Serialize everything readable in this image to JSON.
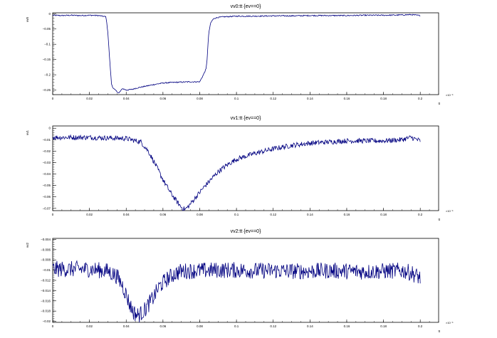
{
  "colors": {
    "trace": "#000080",
    "frame": "#000000",
    "background": "#ffffff"
  },
  "chart_data": [
    {
      "type": "line",
      "title": "vv0:tt {ev==0}",
      "xlabel": "tt",
      "ylabel": "vv0",
      "x_exponent_label": "×10⁻⁶",
      "xlim": [
        0,
        0.21
      ],
      "ylim": [
        -0.265,
        0.003
      ],
      "x_ticks": [
        0,
        0.02,
        0.04,
        0.06,
        0.08,
        0.1,
        0.12,
        0.14,
        0.16,
        0.18,
        0.2
      ],
      "y_ticks": [
        0,
        -0.05,
        -0.1,
        -0.15,
        -0.2,
        -0.25
      ],
      "series": [
        {
          "x": [
            0,
            0.005,
            0.01,
            0.015,
            0.02,
            0.025,
            0.029,
            0.03,
            0.031,
            0.032,
            0.033,
            0.034,
            0.036,
            0.038,
            0.04,
            0.043,
            0.046,
            0.05,
            0.055,
            0.06,
            0.065,
            0.07,
            0.075,
            0.08,
            0.082,
            0.0835,
            0.084,
            0.0845,
            0.085,
            0.086,
            0.087,
            0.088,
            0.09,
            0.093,
            0.097,
            0.1,
            0.11,
            0.12,
            0.13,
            0.14,
            0.15,
            0.16,
            0.17,
            0.18,
            0.19,
            0.195,
            0.2
          ],
          "y": [
            -0.005,
            -0.006,
            -0.005,
            -0.006,
            -0.005,
            -0.006,
            -0.01,
            -0.06,
            -0.15,
            -0.23,
            -0.245,
            -0.25,
            -0.26,
            -0.245,
            -0.25,
            -0.248,
            -0.243,
            -0.238,
            -0.232,
            -0.227,
            -0.225,
            -0.224,
            -0.223,
            -0.223,
            -0.2,
            -0.18,
            -0.15,
            -0.1,
            -0.06,
            -0.03,
            -0.02,
            -0.015,
            -0.012,
            -0.01,
            -0.009,
            -0.008,
            -0.008,
            -0.007,
            -0.007,
            -0.006,
            -0.006,
            -0.006,
            -0.005,
            -0.005,
            -0.004,
            -0.003,
            -0.006
          ],
          "noise": 0.0018
        }
      ]
    },
    {
      "type": "line",
      "title": "vv1:tt {ev==0}",
      "xlabel": "tt",
      "ylabel": "vv1",
      "x_exponent_label": "×10⁻⁶",
      "xlim": [
        0,
        0.21
      ],
      "ylim": [
        -0.072,
        0.002
      ],
      "x_ticks": [
        0,
        0.02,
        0.04,
        0.06,
        0.08,
        0.1,
        0.12,
        0.14,
        0.16,
        0.18,
        0.2
      ],
      "y_ticks": [
        0,
        -0.01,
        -0.02,
        -0.03,
        -0.04,
        -0.05,
        -0.06,
        -0.07
      ],
      "series": [
        {
          "x": [
            0,
            0.02,
            0.04,
            0.048,
            0.052,
            0.056,
            0.06,
            0.064,
            0.068,
            0.07,
            0.072,
            0.074,
            0.076,
            0.078,
            0.082,
            0.086,
            0.09,
            0.095,
            0.1,
            0.11,
            0.12,
            0.13,
            0.14,
            0.15,
            0.16,
            0.17,
            0.18,
            0.19,
            0.195,
            0.2
          ],
          "y": [
            -0.008,
            -0.008,
            -0.009,
            -0.012,
            -0.02,
            -0.032,
            -0.045,
            -0.056,
            -0.065,
            -0.069,
            -0.071,
            -0.068,
            -0.064,
            -0.06,
            -0.052,
            -0.045,
            -0.038,
            -0.032,
            -0.027,
            -0.022,
            -0.018,
            -0.015,
            -0.013,
            -0.012,
            -0.011,
            -0.011,
            -0.011,
            -0.01,
            -0.008,
            -0.011
          ],
          "noise": 0.0022
        }
      ]
    },
    {
      "type": "line",
      "title": "vv2:tt {ev==0}",
      "xlabel": "tt",
      "ylabel": "vv2",
      "x_exponent_label": "×10⁻⁶",
      "xlim": [
        0,
        0.21
      ],
      "ylim": [
        -0.0202,
        -0.0038
      ],
      "x_ticks": [
        0,
        0.02,
        0.04,
        0.06,
        0.08,
        0.1,
        0.12,
        0.14,
        0.16,
        0.18,
        0.2
      ],
      "y_ticks": [
        -0.004,
        -0.006,
        -0.008,
        -0.01,
        -0.012,
        -0.014,
        -0.016,
        -0.018,
        -0.02
      ],
      "series": [
        {
          "x": [
            0,
            0.02,
            0.03,
            0.035,
            0.038,
            0.04,
            0.042,
            0.044,
            0.046,
            0.048,
            0.05,
            0.052,
            0.055,
            0.058,
            0.062,
            0.066,
            0.07,
            0.08,
            0.09,
            0.1,
            0.11,
            0.12,
            0.13,
            0.14,
            0.15,
            0.16,
            0.17,
            0.18,
            0.19,
            0.195,
            0.2
          ],
          "y": [
            -0.0098,
            -0.0098,
            -0.0102,
            -0.0112,
            -0.013,
            -0.0148,
            -0.0168,
            -0.0182,
            -0.0188,
            -0.0185,
            -0.0178,
            -0.0168,
            -0.0152,
            -0.0132,
            -0.0118,
            -0.0108,
            -0.0102,
            -0.0101,
            -0.01,
            -0.01,
            -0.0101,
            -0.0101,
            -0.0102,
            -0.0102,
            -0.0101,
            -0.0102,
            -0.0103,
            -0.0102,
            -0.0101,
            -0.0105,
            -0.0115
          ],
          "noise": 0.0016
        }
      ]
    }
  ]
}
